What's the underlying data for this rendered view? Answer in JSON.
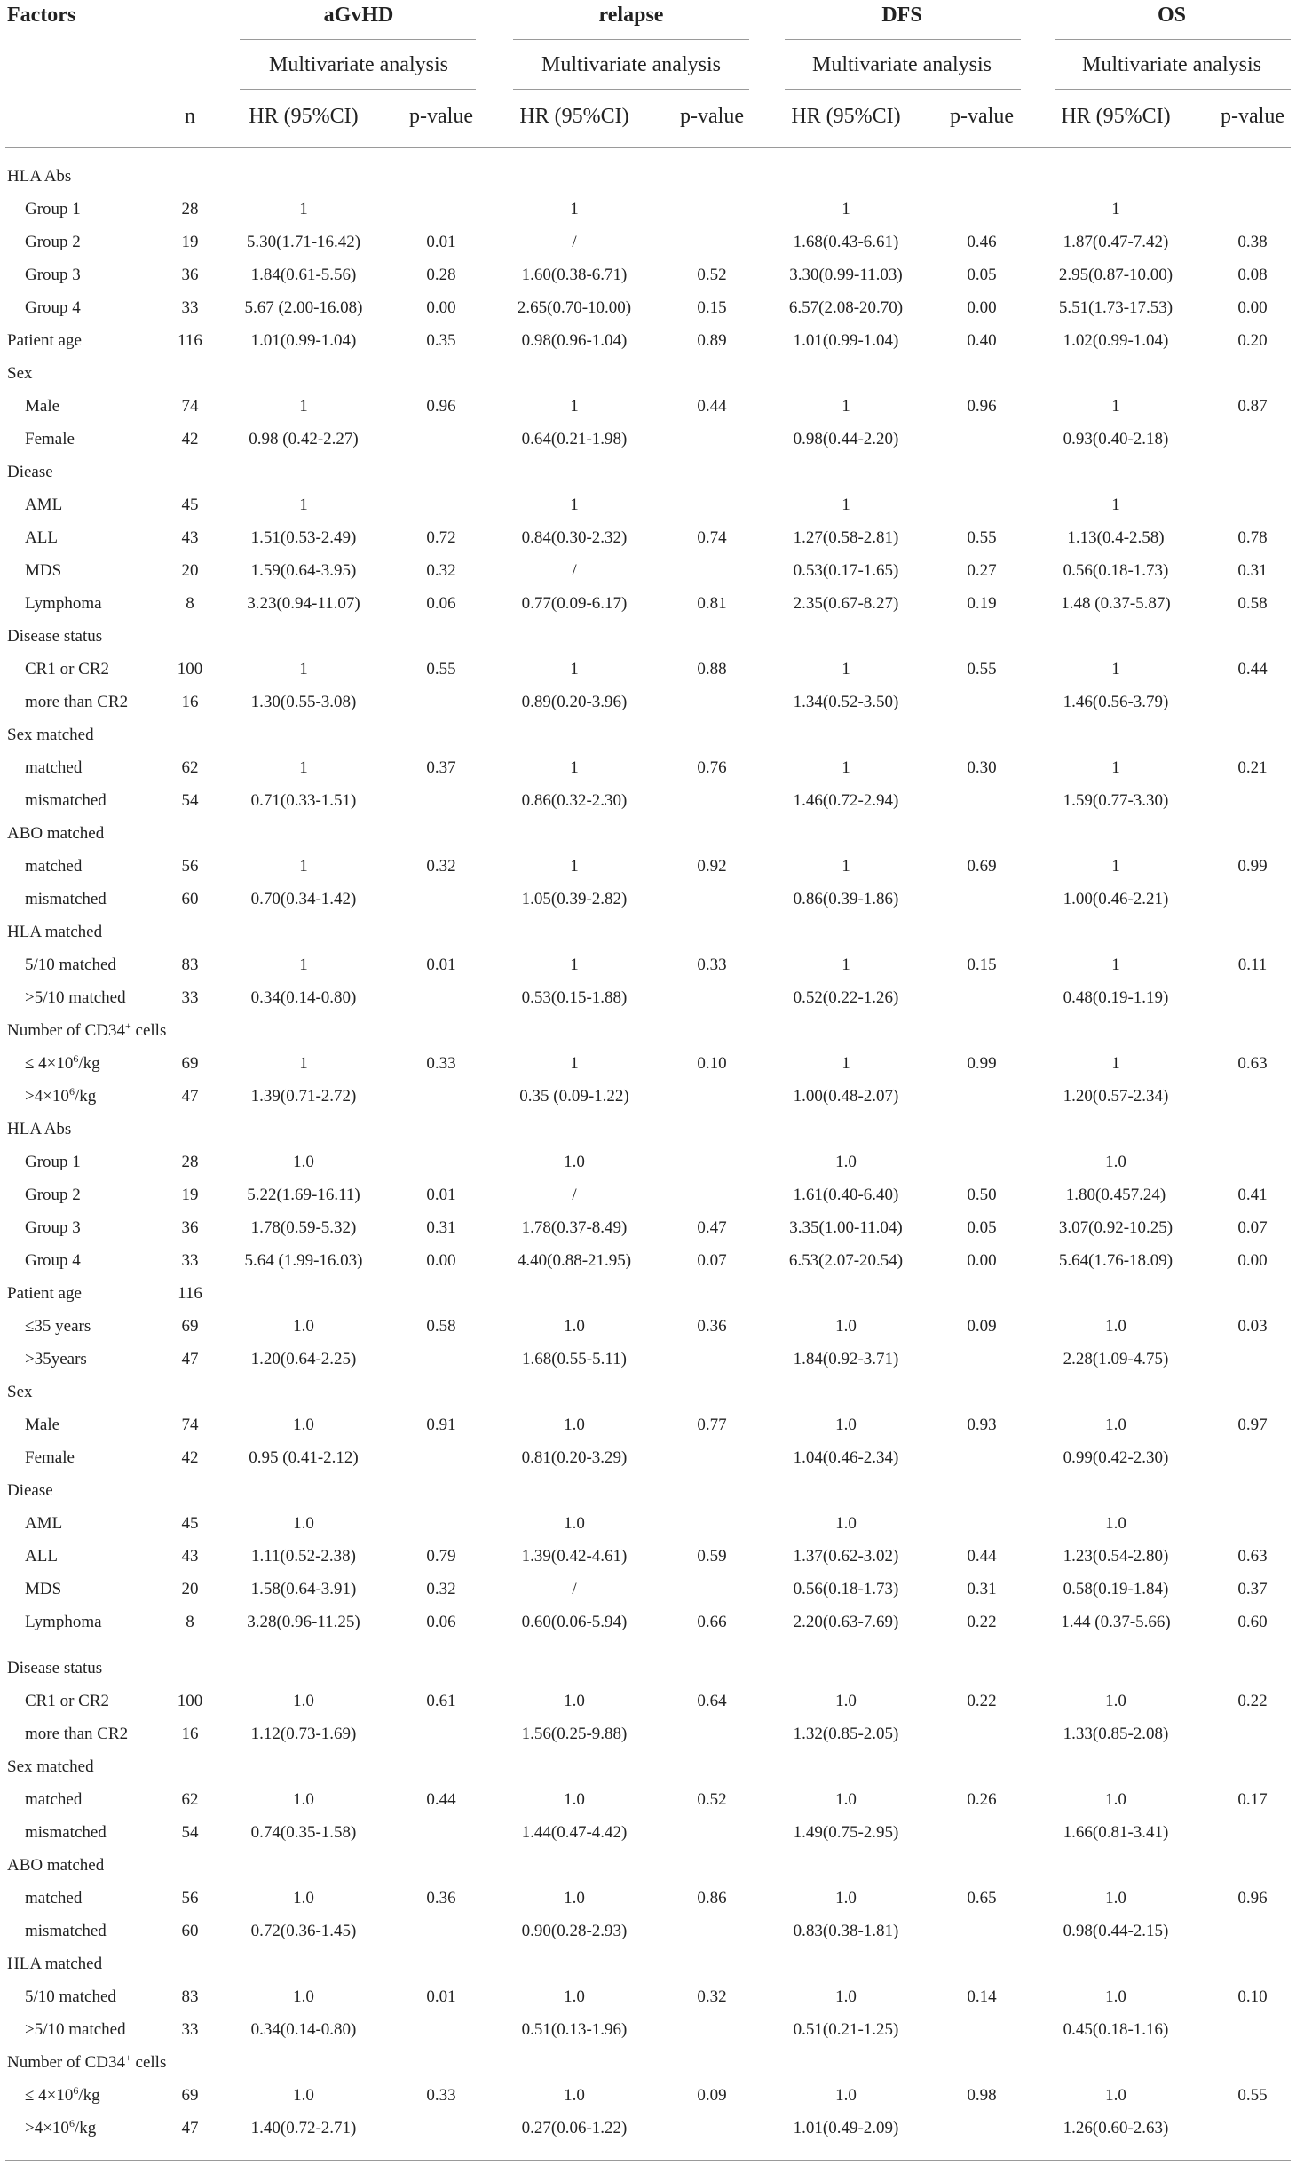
{
  "headers": {
    "factors": "Factors",
    "n": "n",
    "groups": [
      "aGvHD",
      "relapse",
      "DFS",
      "OS"
    ],
    "multivariate": "Multivariate analysis",
    "hr": "HR (95%CI)",
    "p": "p-value"
  },
  "rows": [
    {
      "label": "HLA Abs",
      "indent": false,
      "n": "",
      "a_hr": "",
      "a_p": "",
      "r_hr": "",
      "r_p": "",
      "d_hr": "",
      "d_p": "",
      "o_hr": "",
      "o_p": ""
    },
    {
      "label": "Group 1",
      "indent": true,
      "n": "28",
      "a_hr": "1",
      "a_p": "",
      "r_hr": "1",
      "r_p": "",
      "d_hr": "1",
      "d_p": "",
      "o_hr": "1",
      "o_p": ""
    },
    {
      "label": "Group 2",
      "indent": true,
      "n": "19",
      "a_hr": "5.30(1.71-16.42)",
      "a_p": "0.01",
      "r_hr": "/",
      "r_p": "",
      "d_hr": "1.68(0.43-6.61)",
      "d_p": "0.46",
      "o_hr": "1.87(0.47-7.42)",
      "o_p": "0.38"
    },
    {
      "label": "Group 3",
      "indent": true,
      "n": "36",
      "a_hr": "1.84(0.61-5.56)",
      "a_p": "0.28",
      "r_hr": "1.60(0.38-6.71)",
      "r_p": "0.52",
      "d_hr": "3.30(0.99-11.03)",
      "d_p": "0.05",
      "o_hr": "2.95(0.87-10.00)",
      "o_p": "0.08"
    },
    {
      "label": "Group 4",
      "indent": true,
      "n": "33",
      "a_hr": "5.67 (2.00-16.08)",
      "a_p": "0.00",
      "r_hr": "2.65(0.70-10.00)",
      "r_p": "0.15",
      "d_hr": "6.57(2.08-20.70)",
      "d_p": "0.00",
      "o_hr": "5.51(1.73-17.53)",
      "o_p": "0.00"
    },
    {
      "label": "Patient age",
      "indent": false,
      "n": "116",
      "a_hr": "1.01(0.99-1.04)",
      "a_p": "0.35",
      "r_hr": "0.98(0.96-1.04)",
      "r_p": "0.89",
      "d_hr": "1.01(0.99-1.04)",
      "d_p": "0.40",
      "o_hr": "1.02(0.99-1.04)",
      "o_p": "0.20"
    },
    {
      "label": "Sex",
      "indent": false,
      "n": "",
      "a_hr": "",
      "a_p": "",
      "r_hr": "",
      "r_p": "",
      "d_hr": "",
      "d_p": "",
      "o_hr": "",
      "o_p": ""
    },
    {
      "label": "Male",
      "indent": true,
      "n": "74",
      "a_hr": "1",
      "a_p": "0.96",
      "r_hr": "1",
      "r_p": "0.44",
      "d_hr": "1",
      "d_p": "0.96",
      "o_hr": "1",
      "o_p": "0.87"
    },
    {
      "label": "Female",
      "indent": true,
      "n": "42",
      "a_hr": "0.98 (0.42-2.27)",
      "a_p": "",
      "r_hr": "0.64(0.21-1.98)",
      "r_p": "",
      "d_hr": "0.98(0.44-2.20)",
      "d_p": "",
      "o_hr": "0.93(0.40-2.18)",
      "o_p": ""
    },
    {
      "label": "Diease",
      "indent": false,
      "n": "",
      "a_hr": "",
      "a_p": "",
      "r_hr": "",
      "r_p": "",
      "d_hr": "",
      "d_p": "",
      "o_hr": "",
      "o_p": ""
    },
    {
      "label": "AML",
      "indent": true,
      "n": "45",
      "a_hr": "1",
      "a_p": "",
      "r_hr": "1",
      "r_p": "",
      "d_hr": "1",
      "d_p": "",
      "o_hr": "1",
      "o_p": ""
    },
    {
      "label": "ALL",
      "indent": true,
      "n": "43",
      "a_hr": "1.51(0.53-2.49)",
      "a_p": "0.72",
      "r_hr": "0.84(0.30-2.32)",
      "r_p": "0.74",
      "d_hr": "1.27(0.58-2.81)",
      "d_p": "0.55",
      "o_hr": "1.13(0.4-2.58)",
      "o_p": "0.78"
    },
    {
      "label": "MDS",
      "indent": true,
      "n": "20",
      "a_hr": "1.59(0.64-3.95)",
      "a_p": "0.32",
      "r_hr": "/",
      "r_p": "",
      "d_hr": "0.53(0.17-1.65)",
      "d_p": "0.27",
      "o_hr": "0.56(0.18-1.73)",
      "o_p": "0.31"
    },
    {
      "label": "Lymphoma",
      "indent": true,
      "n": "8",
      "a_hr": "3.23(0.94-11.07)",
      "a_p": "0.06",
      "r_hr": "0.77(0.09-6.17)",
      "r_p": "0.81",
      "d_hr": "2.35(0.67-8.27)",
      "d_p": "0.19",
      "o_hr": "1.48 (0.37-5.87)",
      "o_p": "0.58"
    },
    {
      "label": "Disease status",
      "indent": false,
      "n": "",
      "a_hr": "",
      "a_p": "",
      "r_hr": "",
      "r_p": "",
      "d_hr": "",
      "d_p": "",
      "o_hr": "",
      "o_p": ""
    },
    {
      "label": "CR1 or CR2",
      "indent": true,
      "n": "100",
      "a_hr": "1",
      "a_p": "0.55",
      "r_hr": "1",
      "r_p": "0.88",
      "d_hr": "1",
      "d_p": "0.55",
      "o_hr": "1",
      "o_p": "0.44"
    },
    {
      "label": "more than CR2",
      "indent": true,
      "n": "16",
      "a_hr": "1.30(0.55-3.08)",
      "a_p": "",
      "r_hr": "0.89(0.20-3.96)",
      "r_p": "",
      "d_hr": "1.34(0.52-3.50)",
      "d_p": "",
      "o_hr": "1.46(0.56-3.79)",
      "o_p": ""
    },
    {
      "label": "Sex matched",
      "indent": false,
      "n": "",
      "a_hr": "",
      "a_p": "",
      "r_hr": "",
      "r_p": "",
      "d_hr": "",
      "d_p": "",
      "o_hr": "",
      "o_p": ""
    },
    {
      "label": "matched",
      "indent": true,
      "n": "62",
      "a_hr": "1",
      "a_p": "0.37",
      "r_hr": "1",
      "r_p": "0.76",
      "d_hr": "1",
      "d_p": "0.30",
      "o_hr": "1",
      "o_p": "0.21"
    },
    {
      "label": "mismatched",
      "indent": true,
      "n": "54",
      "a_hr": "0.71(0.33-1.51)",
      "a_p": "",
      "r_hr": "0.86(0.32-2.30)",
      "r_p": "",
      "d_hr": "1.46(0.72-2.94)",
      "d_p": "",
      "o_hr": "1.59(0.77-3.30)",
      "o_p": ""
    },
    {
      "label": "ABO matched",
      "indent": false,
      "n": "",
      "a_hr": "",
      "a_p": "",
      "r_hr": "",
      "r_p": "",
      "d_hr": "",
      "d_p": "",
      "o_hr": "",
      "o_p": ""
    },
    {
      "label": "matched",
      "indent": true,
      "n": "56",
      "a_hr": "1",
      "a_p": "0.32",
      "r_hr": "1",
      "r_p": "0.92",
      "d_hr": "1",
      "d_p": "0.69",
      "o_hr": "1",
      "o_p": "0.99"
    },
    {
      "label": "mismatched",
      "indent": true,
      "n": "60",
      "a_hr": "0.70(0.34-1.42)",
      "a_p": "",
      "r_hr": "1.05(0.39-2.82)",
      "r_p": "",
      "d_hr": "0.86(0.39-1.86)",
      "d_p": "",
      "o_hr": "1.00(0.46-2.21)",
      "o_p": ""
    },
    {
      "label": "HLA matched",
      "indent": false,
      "n": "",
      "a_hr": "",
      "a_p": "",
      "r_hr": "",
      "r_p": "",
      "d_hr": "",
      "d_p": "",
      "o_hr": "",
      "o_p": ""
    },
    {
      "label": "5/10 matched",
      "indent": true,
      "n": "83",
      "a_hr": "1",
      "a_p": "0.01",
      "r_hr": "1",
      "r_p": "0.33",
      "d_hr": "1",
      "d_p": "0.15",
      "o_hr": "1",
      "o_p": "0.11"
    },
    {
      "label": ">5/10 matched",
      "indent": true,
      "n": "33",
      "a_hr": "0.34(0.14-0.80)",
      "a_p": "",
      "r_hr": "0.53(0.15-1.88)",
      "r_p": "",
      "d_hr": "0.52(0.22-1.26)",
      "d_p": "",
      "o_hr": "0.48(0.19-1.19)",
      "o_p": ""
    },
    {
      "label": "Number of CD34+ cells",
      "indent": false,
      "n": "",
      "a_hr": "",
      "a_p": "",
      "r_hr": "",
      "r_p": "",
      "d_hr": "",
      "d_p": "",
      "o_hr": "",
      "o_p": ""
    },
    {
      "label": "≤ 4×106/kg",
      "indent": true,
      "n": "69",
      "a_hr": "1",
      "a_p": "0.33",
      "r_hr": "1",
      "r_p": "0.10",
      "d_hr": "1",
      "d_p": "0.99",
      "o_hr": "1",
      "o_p": "0.63"
    },
    {
      "label": ">4×106/kg",
      "indent": true,
      "n": "47",
      "a_hr": "1.39(0.71-2.72)",
      "a_p": "",
      "r_hr": "0.35 (0.09-1.22)",
      "r_p": "",
      "d_hr": "1.00(0.48-2.07)",
      "d_p": "",
      "o_hr": "1.20(0.57-2.34)",
      "o_p": ""
    },
    {
      "label": "HLA Abs",
      "indent": false,
      "n": "",
      "a_hr": "",
      "a_p": "",
      "r_hr": "",
      "r_p": "",
      "d_hr": "",
      "d_p": "",
      "o_hr": "",
      "o_p": ""
    },
    {
      "label": "Group 1",
      "indent": true,
      "n": "28",
      "a_hr": "1.0",
      "a_p": "",
      "r_hr": "1.0",
      "r_p": "",
      "d_hr": "1.0",
      "d_p": "",
      "o_hr": "1.0",
      "o_p": ""
    },
    {
      "label": "Group 2",
      "indent": true,
      "n": "19",
      "a_hr": "5.22(1.69-16.11)",
      "a_p": "0.01",
      "r_hr": "/",
      "r_p": "",
      "d_hr": "1.61(0.40-6.40)",
      "d_p": "0.50",
      "o_hr": "1.80(0.457.24)",
      "o_p": "0.41"
    },
    {
      "label": "Group 3",
      "indent": true,
      "n": "36",
      "a_hr": "1.78(0.59-5.32)",
      "a_p": "0.31",
      "r_hr": "1.78(0.37-8.49)",
      "r_p": "0.47",
      "d_hr": "3.35(1.00-11.04)",
      "d_p": "0.05",
      "o_hr": "3.07(0.92-10.25)",
      "o_p": "0.07"
    },
    {
      "label": "Group 4",
      "indent": true,
      "n": "33",
      "a_hr": "5.64 (1.99-16.03)",
      "a_p": "0.00",
      "r_hr": "4.40(0.88-21.95)",
      "r_p": "0.07",
      "d_hr": "6.53(2.07-20.54)",
      "d_p": "0.00",
      "o_hr": "5.64(1.76-18.09)",
      "o_p": "0.00"
    },
    {
      "label": "Patient age",
      "indent": false,
      "n": "116",
      "a_hr": "",
      "a_p": "",
      "r_hr": "",
      "r_p": "",
      "d_hr": "",
      "d_p": "",
      "o_hr": "",
      "o_p": ""
    },
    {
      "label": "≤35 years",
      "indent": true,
      "n": "69",
      "a_hr": "1.0",
      "a_p": "0.58",
      "r_hr": "1.0",
      "r_p": "0.36",
      "d_hr": "1.0",
      "d_p": "0.09",
      "o_hr": "1.0",
      "o_p": "0.03"
    },
    {
      "label": ">35years",
      "indent": true,
      "n": "47",
      "a_hr": "1.20(0.64-2.25)",
      "a_p": "",
      "r_hr": "1.68(0.55-5.11)",
      "r_p": "",
      "d_hr": "1.84(0.92-3.71)",
      "d_p": "",
      "o_hr": "2.28(1.09-4.75)",
      "o_p": ""
    },
    {
      "label": "Sex",
      "indent": false,
      "n": "",
      "a_hr": "",
      "a_p": "",
      "r_hr": "",
      "r_p": "",
      "d_hr": "",
      "d_p": "",
      "o_hr": "",
      "o_p": ""
    },
    {
      "label": "Male",
      "indent": true,
      "n": "74",
      "a_hr": "1.0",
      "a_p": "0.91",
      "r_hr": "1.0",
      "r_p": "0.77",
      "d_hr": "1.0",
      "d_p": "0.93",
      "o_hr": "1.0",
      "o_p": "0.97"
    },
    {
      "label": "Female",
      "indent": true,
      "n": "42",
      "a_hr": "0.95 (0.41-2.12)",
      "a_p": "",
      "r_hr": "0.81(0.20-3.29)",
      "r_p": "",
      "d_hr": "1.04(0.46-2.34)",
      "d_p": "",
      "o_hr": "0.99(0.42-2.30)",
      "o_p": ""
    },
    {
      "label": "Diease",
      "indent": false,
      "n": "",
      "a_hr": "",
      "a_p": "",
      "r_hr": "",
      "r_p": "",
      "d_hr": "",
      "d_p": "",
      "o_hr": "",
      "o_p": ""
    },
    {
      "label": "AML",
      "indent": true,
      "n": "45",
      "a_hr": "1.0",
      "a_p": "",
      "r_hr": "1.0",
      "r_p": "",
      "d_hr": "1.0",
      "d_p": "",
      "o_hr": "1.0",
      "o_p": ""
    },
    {
      "label": "ALL",
      "indent": true,
      "n": "43",
      "a_hr": "1.11(0.52-2.38)",
      "a_p": "0.79",
      "r_hr": "1.39(0.42-4.61)",
      "r_p": "0.59",
      "d_hr": "1.37(0.62-3.02)",
      "d_p": "0.44",
      "o_hr": "1.23(0.54-2.80)",
      "o_p": "0.63"
    },
    {
      "label": "MDS",
      "indent": true,
      "n": "20",
      "a_hr": "1.58(0.64-3.91)",
      "a_p": "0.32",
      "r_hr": "/",
      "r_p": "",
      "d_hr": "0.56(0.18-1.73)",
      "d_p": "0.31",
      "o_hr": "0.58(0.19-1.84)",
      "o_p": "0.37"
    },
    {
      "label": "Lymphoma",
      "indent": true,
      "n": "8",
      "a_hr": "3.28(0.96-11.25)",
      "a_p": "0.06",
      "r_hr": "0.60(0.06-5.94)",
      "r_p": "0.66",
      "d_hr": "2.20(0.63-7.69)",
      "d_p": "0.22",
      "o_hr": "1.44 (0.37-5.66)",
      "o_p": "0.60"
    },
    {
      "label": "Disease status",
      "indent": false,
      "n": "",
      "a_hr": "",
      "a_p": "",
      "r_hr": "",
      "r_p": "",
      "d_hr": "",
      "d_p": "",
      "o_hr": "",
      "o_p": ""
    },
    {
      "label": "CR1 or CR2",
      "indent": true,
      "n": "100",
      "a_hr": "1.0",
      "a_p": "0.61",
      "r_hr": "1.0",
      "r_p": "0.64",
      "d_hr": "1.0",
      "d_p": "0.22",
      "o_hr": "1.0",
      "o_p": "0.22"
    },
    {
      "label": "more than CR2",
      "indent": true,
      "n": "16",
      "a_hr": "1.12(0.73-1.69)",
      "a_p": "",
      "r_hr": "1.56(0.25-9.88)",
      "r_p": "",
      "d_hr": "1.32(0.85-2.05)",
      "d_p": "",
      "o_hr": "1.33(0.85-2.08)",
      "o_p": ""
    },
    {
      "label": "Sex matched",
      "indent": false,
      "n": "",
      "a_hr": "",
      "a_p": "",
      "r_hr": "",
      "r_p": "",
      "d_hr": "",
      "d_p": "",
      "o_hr": "",
      "o_p": ""
    },
    {
      "label": "matched",
      "indent": true,
      "n": "62",
      "a_hr": "1.0",
      "a_p": "0.44",
      "r_hr": "1.0",
      "r_p": "0.52",
      "d_hr": "1.0",
      "d_p": "0.26",
      "o_hr": "1.0",
      "o_p": "0.17"
    },
    {
      "label": "mismatched",
      "indent": true,
      "n": "54",
      "a_hr": "0.74(0.35-1.58)",
      "a_p": "",
      "r_hr": "1.44(0.47-4.42)",
      "r_p": "",
      "d_hr": "1.49(0.75-2.95)",
      "d_p": "",
      "o_hr": "1.66(0.81-3.41)",
      "o_p": ""
    },
    {
      "label": "ABO matched",
      "indent": false,
      "n": "",
      "a_hr": "",
      "a_p": "",
      "r_hr": "",
      "r_p": "",
      "d_hr": "",
      "d_p": "",
      "o_hr": "",
      "o_p": ""
    },
    {
      "label": "matched",
      "indent": true,
      "n": "56",
      "a_hr": "1.0",
      "a_p": "0.36",
      "r_hr": "1.0",
      "r_p": "0.86",
      "d_hr": "1.0",
      "d_p": "0.65",
      "o_hr": "1.0",
      "o_p": "0.96"
    },
    {
      "label": "mismatched",
      "indent": true,
      "n": "60",
      "a_hr": "0.72(0.36-1.45)",
      "a_p": "",
      "r_hr": "0.90(0.28-2.93)",
      "r_p": "",
      "d_hr": "0.83(0.38-1.81)",
      "d_p": "",
      "o_hr": "0.98(0.44-2.15)",
      "o_p": ""
    },
    {
      "label": "HLA matched",
      "indent": false,
      "n": "",
      "a_hr": "",
      "a_p": "",
      "r_hr": "",
      "r_p": "",
      "d_hr": "",
      "d_p": "",
      "o_hr": "",
      "o_p": ""
    },
    {
      "label": "5/10 matched",
      "indent": true,
      "n": "83",
      "a_hr": "1.0",
      "a_p": "0.01",
      "r_hr": "1.0",
      "r_p": "0.32",
      "d_hr": "1.0",
      "d_p": "0.14",
      "o_hr": "1.0",
      "o_p": "0.10"
    },
    {
      "label": ">5/10 matched",
      "indent": true,
      "n": "33",
      "a_hr": "0.34(0.14-0.80)",
      "a_p": "",
      "r_hr": "0.51(0.13-1.96)",
      "r_p": "",
      "d_hr": "0.51(0.21-1.25)",
      "d_p": "",
      "o_hr": "0.45(0.18-1.16)",
      "o_p": ""
    },
    {
      "label": "Number of CD34+ cells",
      "indent": false,
      "n": "",
      "a_hr": "",
      "a_p": "",
      "r_hr": "",
      "r_p": "",
      "d_hr": "",
      "d_p": "",
      "o_hr": "",
      "o_p": ""
    },
    {
      "label": "≤ 4×106/kg",
      "indent": true,
      "n": "69",
      "a_hr": "1.0",
      "a_p": "0.33",
      "r_hr": "1.0",
      "r_p": "0.09",
      "d_hr": "1.0",
      "d_p": "0.98",
      "o_hr": "1.0",
      "o_p": "0.55"
    },
    {
      "label": ">4×106/kg",
      "indent": true,
      "n": "47",
      "a_hr": "1.40(0.72-2.71)",
      "a_p": "",
      "r_hr": "0.27(0.06-1.22)",
      "r_p": "",
      "d_hr": "1.01(0.49-2.09)",
      "d_p": "",
      "o_hr": "1.26(0.60-2.63)",
      "o_p": ""
    }
  ]
}
